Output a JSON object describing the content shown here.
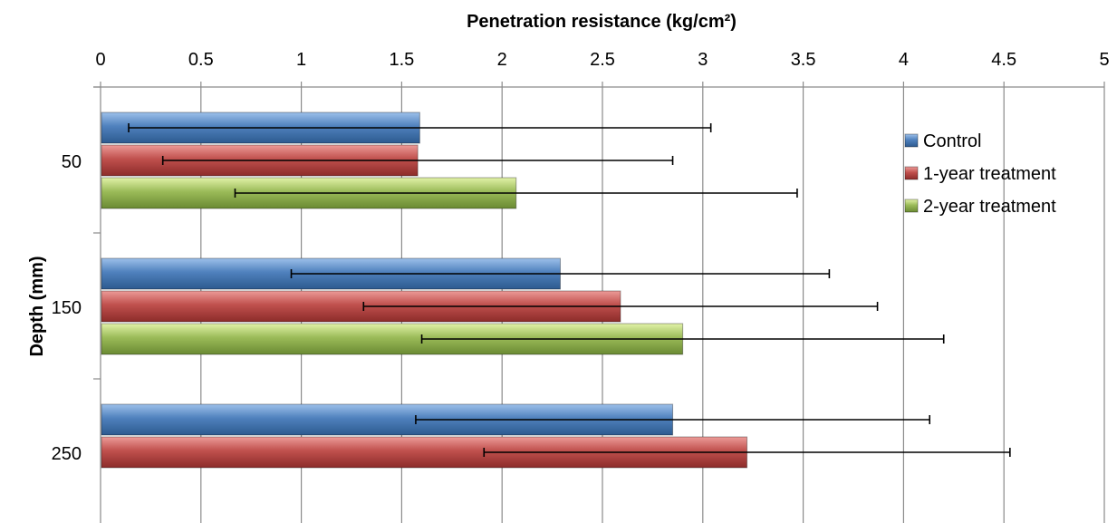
{
  "chart_data": {
    "type": "bar",
    "orientation": "horizontal",
    "title": "",
    "xlabel": "Penetration resistance (kg/cm²)",
    "ylabel": "Depth (mm)",
    "categories": [
      "50",
      "150",
      "250"
    ],
    "x_ticks": [
      "0",
      "0.5",
      "1",
      "1.5",
      "2",
      "2.5",
      "3",
      "3.5",
      "4",
      "4.5",
      "5"
    ],
    "xlim": [
      0,
      5
    ],
    "x_axis_position": "top",
    "grid": "vertical",
    "legend_position": "top-right",
    "series": [
      {
        "name": "Control",
        "color": "#4a7ebb",
        "values": [
          1.59,
          2.29,
          2.85
        ],
        "error": [
          1.45,
          1.34,
          1.28
        ]
      },
      {
        "name": "1-year treatment",
        "color": "#be4b48",
        "values": [
          1.58,
          2.59,
          3.22
        ],
        "error": [
          1.27,
          1.28,
          1.31
        ]
      },
      {
        "name": "2-year treatment",
        "color": "#98b954",
        "values": [
          2.07,
          2.9,
          null
        ],
        "error": [
          1.4,
          1.3,
          null
        ]
      }
    ]
  }
}
